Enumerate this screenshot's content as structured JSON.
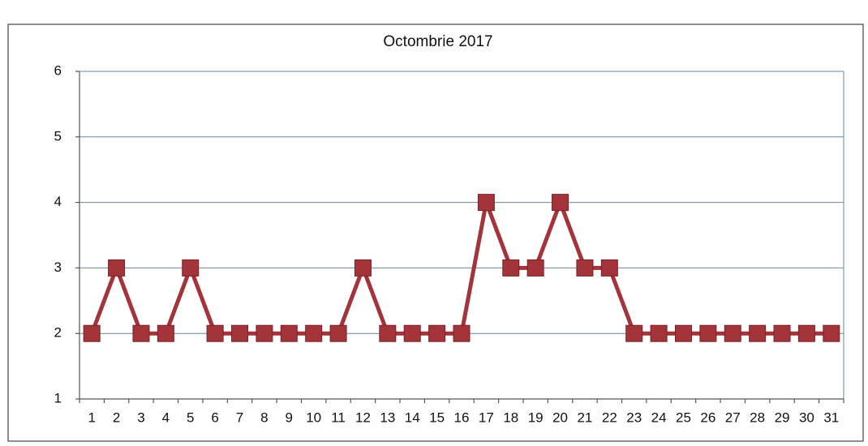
{
  "chart_data": {
    "type": "line",
    "title": "Octombrie 2017",
    "categories": [
      "1",
      "2",
      "3",
      "4",
      "5",
      "6",
      "7",
      "8",
      "9",
      "10",
      "11",
      "12",
      "13",
      "14",
      "15",
      "16",
      "17",
      "18",
      "19",
      "20",
      "21",
      "22",
      "23",
      "24",
      "25",
      "26",
      "27",
      "28",
      "29",
      "30",
      "31"
    ],
    "values": [
      2,
      3,
      2,
      2,
      3,
      2,
      2,
      2,
      2,
      2,
      2,
      3,
      2,
      2,
      2,
      2,
      4,
      3,
      3,
      4,
      3,
      3,
      2,
      2,
      2,
      2,
      2,
      2,
      2,
      2,
      2
    ],
    "color": "#a3343a",
    "ylim": [
      1,
      6
    ],
    "yticks": [
      1,
      2,
      3,
      4,
      5,
      6
    ],
    "grid": true
  }
}
